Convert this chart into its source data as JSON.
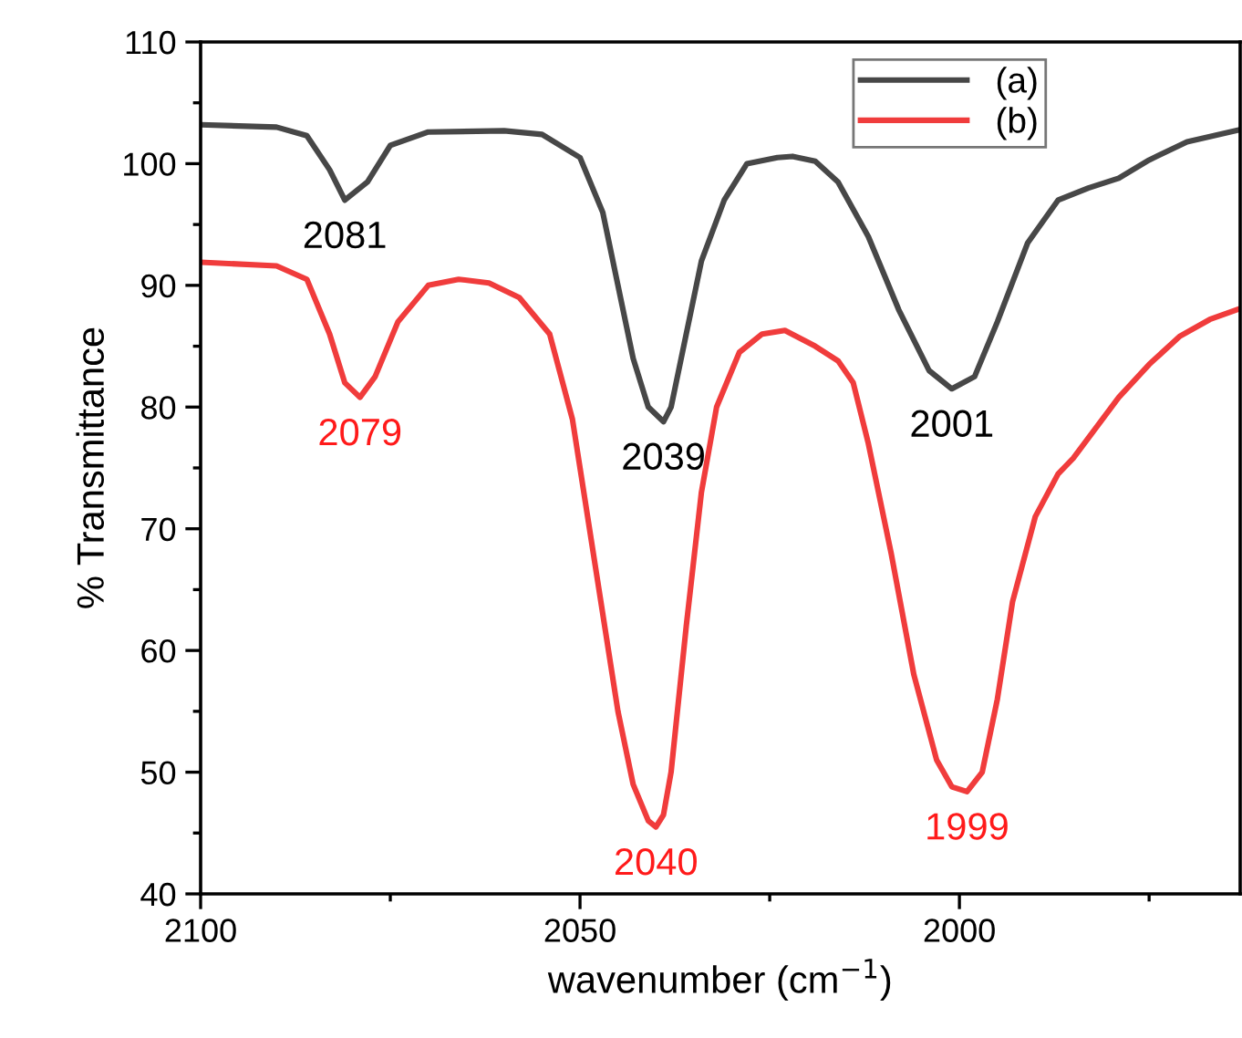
{
  "chart_data": {
    "type": "line",
    "xlabel": "wavenumber (cm$^{−1}$)",
    "ylabel": "% Transmittance",
    "xlim": [
      2100,
      1963
    ],
    "xticks": [
      2100,
      2050,
      2000
    ],
    "ylim": [
      40,
      110
    ],
    "yticks": [
      40,
      50,
      60,
      70,
      80,
      90,
      100,
      110
    ],
    "grid": false,
    "legend": "top right",
    "line_style": "solid",
    "marker": "none",
    "series": [
      {
        "name": "(a)",
        "color": "#474747",
        "x": [
          2100,
          2090,
          2086,
          2083,
          2081,
          2078,
          2075,
          2070,
          2060,
          2055,
          2050,
          2047,
          2045,
          2043,
          2041,
          2039,
          2038,
          2036,
          2034,
          2031,
          2028,
          2024,
          2022,
          2019,
          2016,
          2012,
          2008,
          2004,
          2001,
          1998,
          1995,
          1991,
          1987,
          1983,
          1979,
          1975,
          1970,
          1963
        ],
        "values": [
          103.2,
          103,
          102.3,
          99.5,
          97,
          98.5,
          101.5,
          102.6,
          102.7,
          102.4,
          100.5,
          96,
          90,
          84,
          80,
          78.8,
          80,
          86,
          92,
          97,
          100,
          100.5,
          100.6,
          100.2,
          98.5,
          94,
          88,
          83,
          81.5,
          82.5,
          87,
          93.5,
          97,
          98,
          98.8,
          100.3,
          101.8,
          102.8
        ]
      },
      {
        "name": "(b)",
        "color": "#f03c3c",
        "x": [
          2100,
          2090,
          2086,
          2083,
          2081,
          2079,
          2077,
          2074,
          2070,
          2066,
          2062,
          2058,
          2054,
          2051,
          2048,
          2045,
          2043,
          2041,
          2040,
          2039,
          2038,
          2036,
          2034,
          2032,
          2029,
          2026,
          2023,
          2019,
          2016,
          2014,
          2012,
          2009,
          2006,
          2003,
          2001,
          1999,
          1997,
          1995,
          1993,
          1990,
          1987,
          1985,
          1979,
          1975,
          1971,
          1967,
          1963
        ],
        "values": [
          91.9,
          91.6,
          90.5,
          86,
          82,
          80.8,
          82.5,
          87,
          90,
          90.5,
          90.2,
          89,
          86,
          79,
          67,
          55,
          49,
          46,
          45.5,
          46.5,
          50,
          62,
          73,
          80,
          84.5,
          86,
          86.3,
          85,
          83.8,
          82,
          77,
          68,
          58,
          51,
          48.8,
          48.4,
          50,
          56,
          64,
          71,
          74.5,
          75.8,
          80.8,
          83.5,
          85.8,
          87.2,
          88.1
        ]
      }
    ],
    "annotations": [
      {
        "text": "2081",
        "x": 2081,
        "y": 97
      },
      {
        "text": "2079",
        "x": 2079,
        "y": 80.8
      },
      {
        "text": "2039",
        "x": 2039,
        "y": 78.8
      },
      {
        "text": "2040",
        "x": 2040,
        "y": 45.5
      },
      {
        "text": "2001",
        "x": 2001,
        "y": 81.5
      },
      {
        "text": "1999",
        "x": 1999,
        "y": 48.4
      }
    ]
  }
}
